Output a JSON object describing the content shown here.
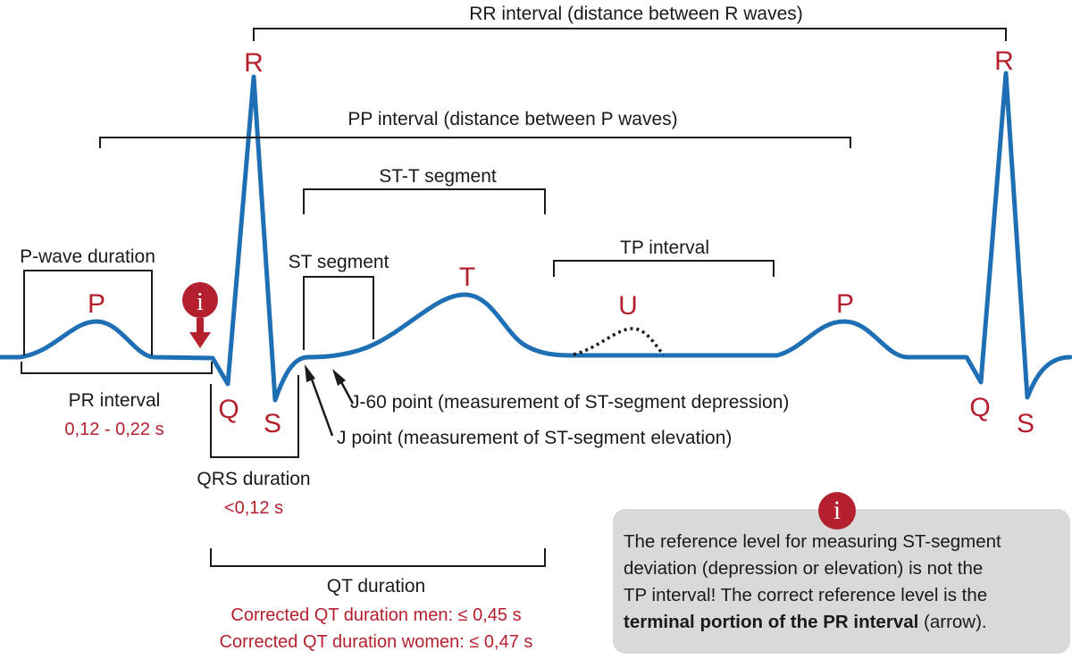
{
  "intervals": {
    "rr": "RR interval (distance between R waves)",
    "pp": "PP interval (distance between P waves)",
    "stt": "ST-T segment",
    "tp": "TP interval",
    "st": "ST segment",
    "pwave": "P-wave duration",
    "pr": "PR interval",
    "pr_value": "0,12 - 0,22 s",
    "qrs": "QRS duration",
    "qrs_value": "<0,12 s",
    "qt": "QT duration",
    "qt_men": "Corrected QT duration men: ≤ 0,45 s",
    "qt_women": "Corrected QT duration women: ≤ 0,47 s",
    "j60": "J-60 point (measurement of ST-segment depression)",
    "j": "J point (measurement of ST-segment elevation)"
  },
  "waves": {
    "p1": "P",
    "r1": "R",
    "q1": "Q",
    "s1": "S",
    "t": "T",
    "u": "U",
    "p2": "P",
    "r2": "R",
    "q2": "Q",
    "s2": "S"
  },
  "info": {
    "icon": "i",
    "text_lines": [
      "The reference level for measuring ST-segment",
      "deviation (depression or elevation) is not the",
      "TP interval! The correct reference level is the"
    ],
    "bold": "terminal portion of the PR interval",
    "tail": " (arrow)."
  },
  "colors": {
    "trace": "#1f6fb4",
    "accent": "#b5202e",
    "note_bg": "#d9d9d9"
  }
}
